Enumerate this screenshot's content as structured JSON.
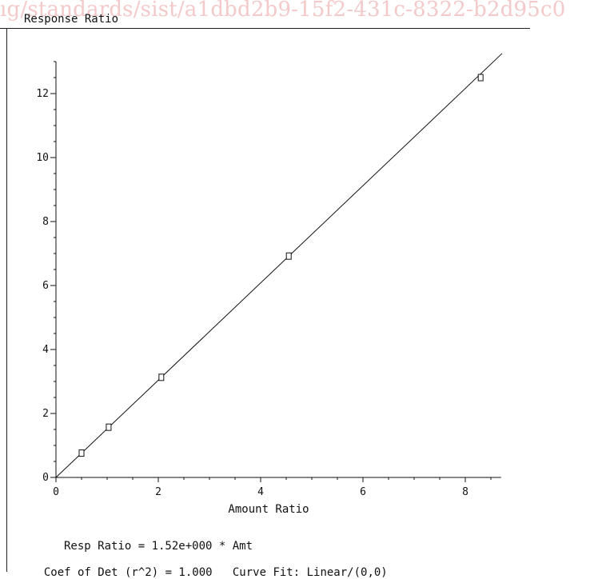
{
  "watermark": "ıg/standards/sist/a1dbd2b9-15f2-431c-8322-b2d95c0",
  "chart_data": {
    "type": "scatter",
    "xlabel": "Amount Ratio",
    "ylabel": "Response Ratio",
    "xlim": [
      0,
      8.7
    ],
    "ylim": [
      0,
      13
    ],
    "x_ticks": [
      0,
      2,
      4,
      6,
      8
    ],
    "y_ticks": [
      0,
      2,
      4,
      6,
      8,
      10,
      12
    ],
    "grid": false,
    "series": [
      {
        "points": [
          {
            "x": 0.5,
            "y": 0.76
          },
          {
            "x": 1.03,
            "y": 1.57
          },
          {
            "x": 2.06,
            "y": 3.13
          },
          {
            "x": 4.55,
            "y": 6.92
          },
          {
            "x": 8.3,
            "y": 12.5
          }
        ]
      }
    ],
    "fit": {
      "slope": 1.52,
      "intercept": 0,
      "x_range": [
        0,
        8.72
      ]
    }
  },
  "footer": {
    "equation": "Resp Ratio = 1.52e+000 * Amt",
    "coef": "Coef of Det (r^2) = 1.000",
    "curve_fit": "Curve Fit: Linear/(0,0)"
  }
}
